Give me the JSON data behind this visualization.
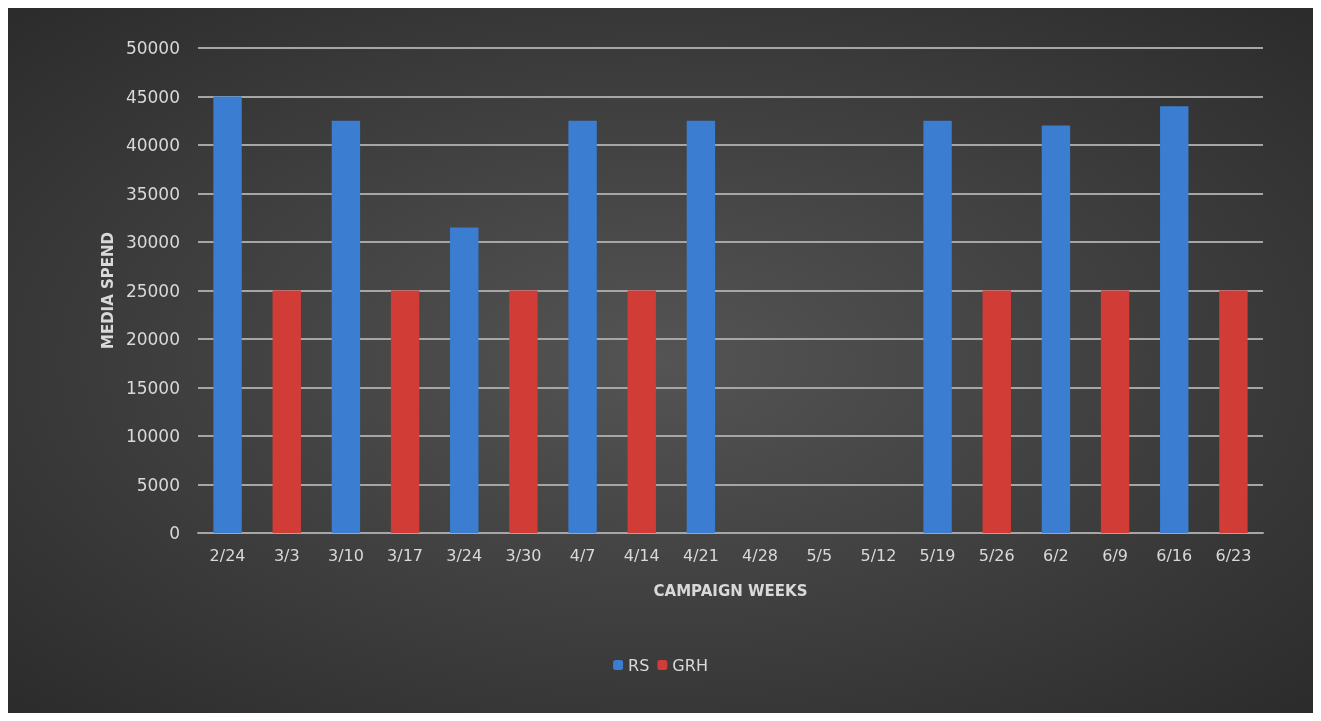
{
  "chart_data": {
    "type": "bar",
    "stacked": true,
    "xlabel": "CAMPAIGN WEEKS",
    "ylabel": "MEDIA SPEND",
    "categories": [
      "2/24",
      "3/3",
      "3/10",
      "3/17",
      "3/24",
      "3/30",
      "4/7",
      "4/14",
      "4/21",
      "4/28",
      "5/5",
      "5/12",
      "5/19",
      "5/26",
      "6/2",
      "6/9",
      "6/16",
      "6/23"
    ],
    "series": [
      {
        "name": "RS",
        "color": "#3b7dd0",
        "values": [
          45000,
          null,
          42500,
          null,
          31500,
          null,
          42500,
          null,
          42500,
          null,
          null,
          null,
          42500,
          null,
          42000,
          null,
          44000,
          null
        ]
      },
      {
        "name": "GRH",
        "color": "#d13c36",
        "values": [
          0,
          25000,
          0,
          25000,
          0,
          25000,
          0,
          25000,
          0,
          0,
          0,
          0,
          0,
          25000,
          null,
          25000,
          null,
          25000
        ]
      }
    ],
    "ylim": [
      0,
      50000
    ],
    "yticks": [
      0,
      5000,
      10000,
      15000,
      20000,
      25000,
      30000,
      35000,
      40000,
      45000,
      50000
    ],
    "grid": "y",
    "legend": "bottom"
  }
}
